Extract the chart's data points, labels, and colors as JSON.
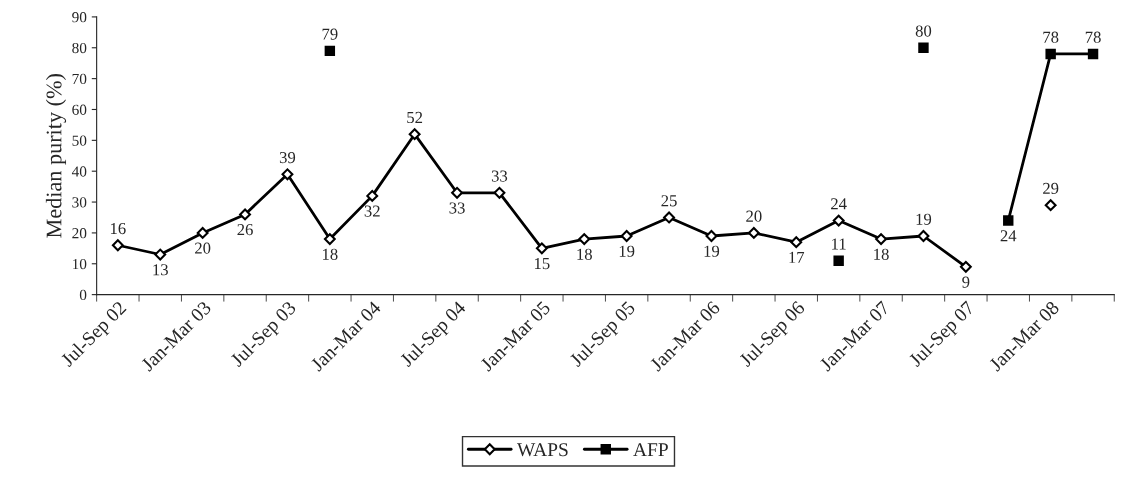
{
  "chart_data": {
    "type": "line",
    "ylabel": "Median purity (%)",
    "categories": [
      "Jul-Sep 02",
      null,
      "Jan-Mar 03",
      null,
      "Jul-Sep 03",
      null,
      "Jan-Mar 04",
      null,
      "Jul-Sep 04",
      null,
      "Jan-Mar 05",
      null,
      "Jul-Sep 05",
      null,
      "Jan-Mar 06",
      null,
      "Jul-Sep 06",
      null,
      "Jan-Mar 07",
      null,
      "Jul-Sep 07",
      null,
      "Jan-Mar 08",
      null
    ],
    "series": [
      {
        "name": "WAPS",
        "color": "#000000",
        "marker": "diamond",
        "values": [
          16,
          13,
          20,
          26,
          39,
          18,
          32,
          52,
          33,
          33,
          15,
          18,
          19,
          25,
          19,
          20,
          17,
          24,
          18,
          19,
          9,
          null,
          29,
          null
        ]
      },
      {
        "name": "AFP",
        "color": "#000000",
        "marker": "square",
        "values": [
          null,
          null,
          null,
          null,
          null,
          79,
          null,
          null,
          null,
          null,
          null,
          null,
          null,
          null,
          null,
          null,
          null,
          11,
          null,
          80,
          null,
          24,
          78,
          78
        ]
      }
    ],
    "ylim": [
      0,
      90
    ],
    "yticks": [
      0,
      10,
      20,
      30,
      40,
      50,
      60,
      70,
      80,
      90
    ],
    "data_labels": true,
    "legend": "bottom",
    "grid": false,
    "line_style": "solid"
  }
}
